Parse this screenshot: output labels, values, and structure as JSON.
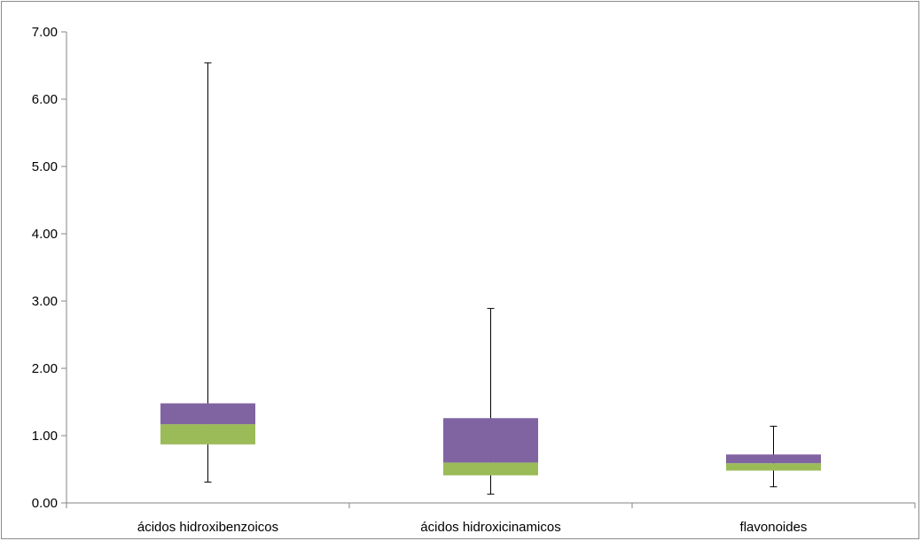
{
  "chart_data": {
    "type": "box",
    "y_tick_labels": [
      "0.00",
      "1.00",
      "2.00",
      "3.00",
      "4.00",
      "5.00",
      "6.00",
      "7.00"
    ],
    "ylim": [
      0,
      7
    ],
    "grid": false,
    "categories": [
      "ácidos hidroxibenzoicos",
      "ácidos hidroxicinamicos",
      "flavonoides"
    ],
    "boxes": [
      {
        "min": 0.31,
        "q1": 0.87,
        "median": 1.17,
        "q3": 1.48,
        "max": 6.54
      },
      {
        "min": 0.13,
        "q1": 0.41,
        "median": 0.6,
        "q3": 1.26,
        "max": 2.89
      },
      {
        "min": 0.24,
        "q1": 0.48,
        "median": 0.59,
        "q3": 0.72,
        "max": 1.14
      }
    ],
    "colors": {
      "lower_box": "#9bbb59",
      "upper_box": "#8064a2",
      "whisker": "#000000",
      "axis": "#868686"
    }
  }
}
